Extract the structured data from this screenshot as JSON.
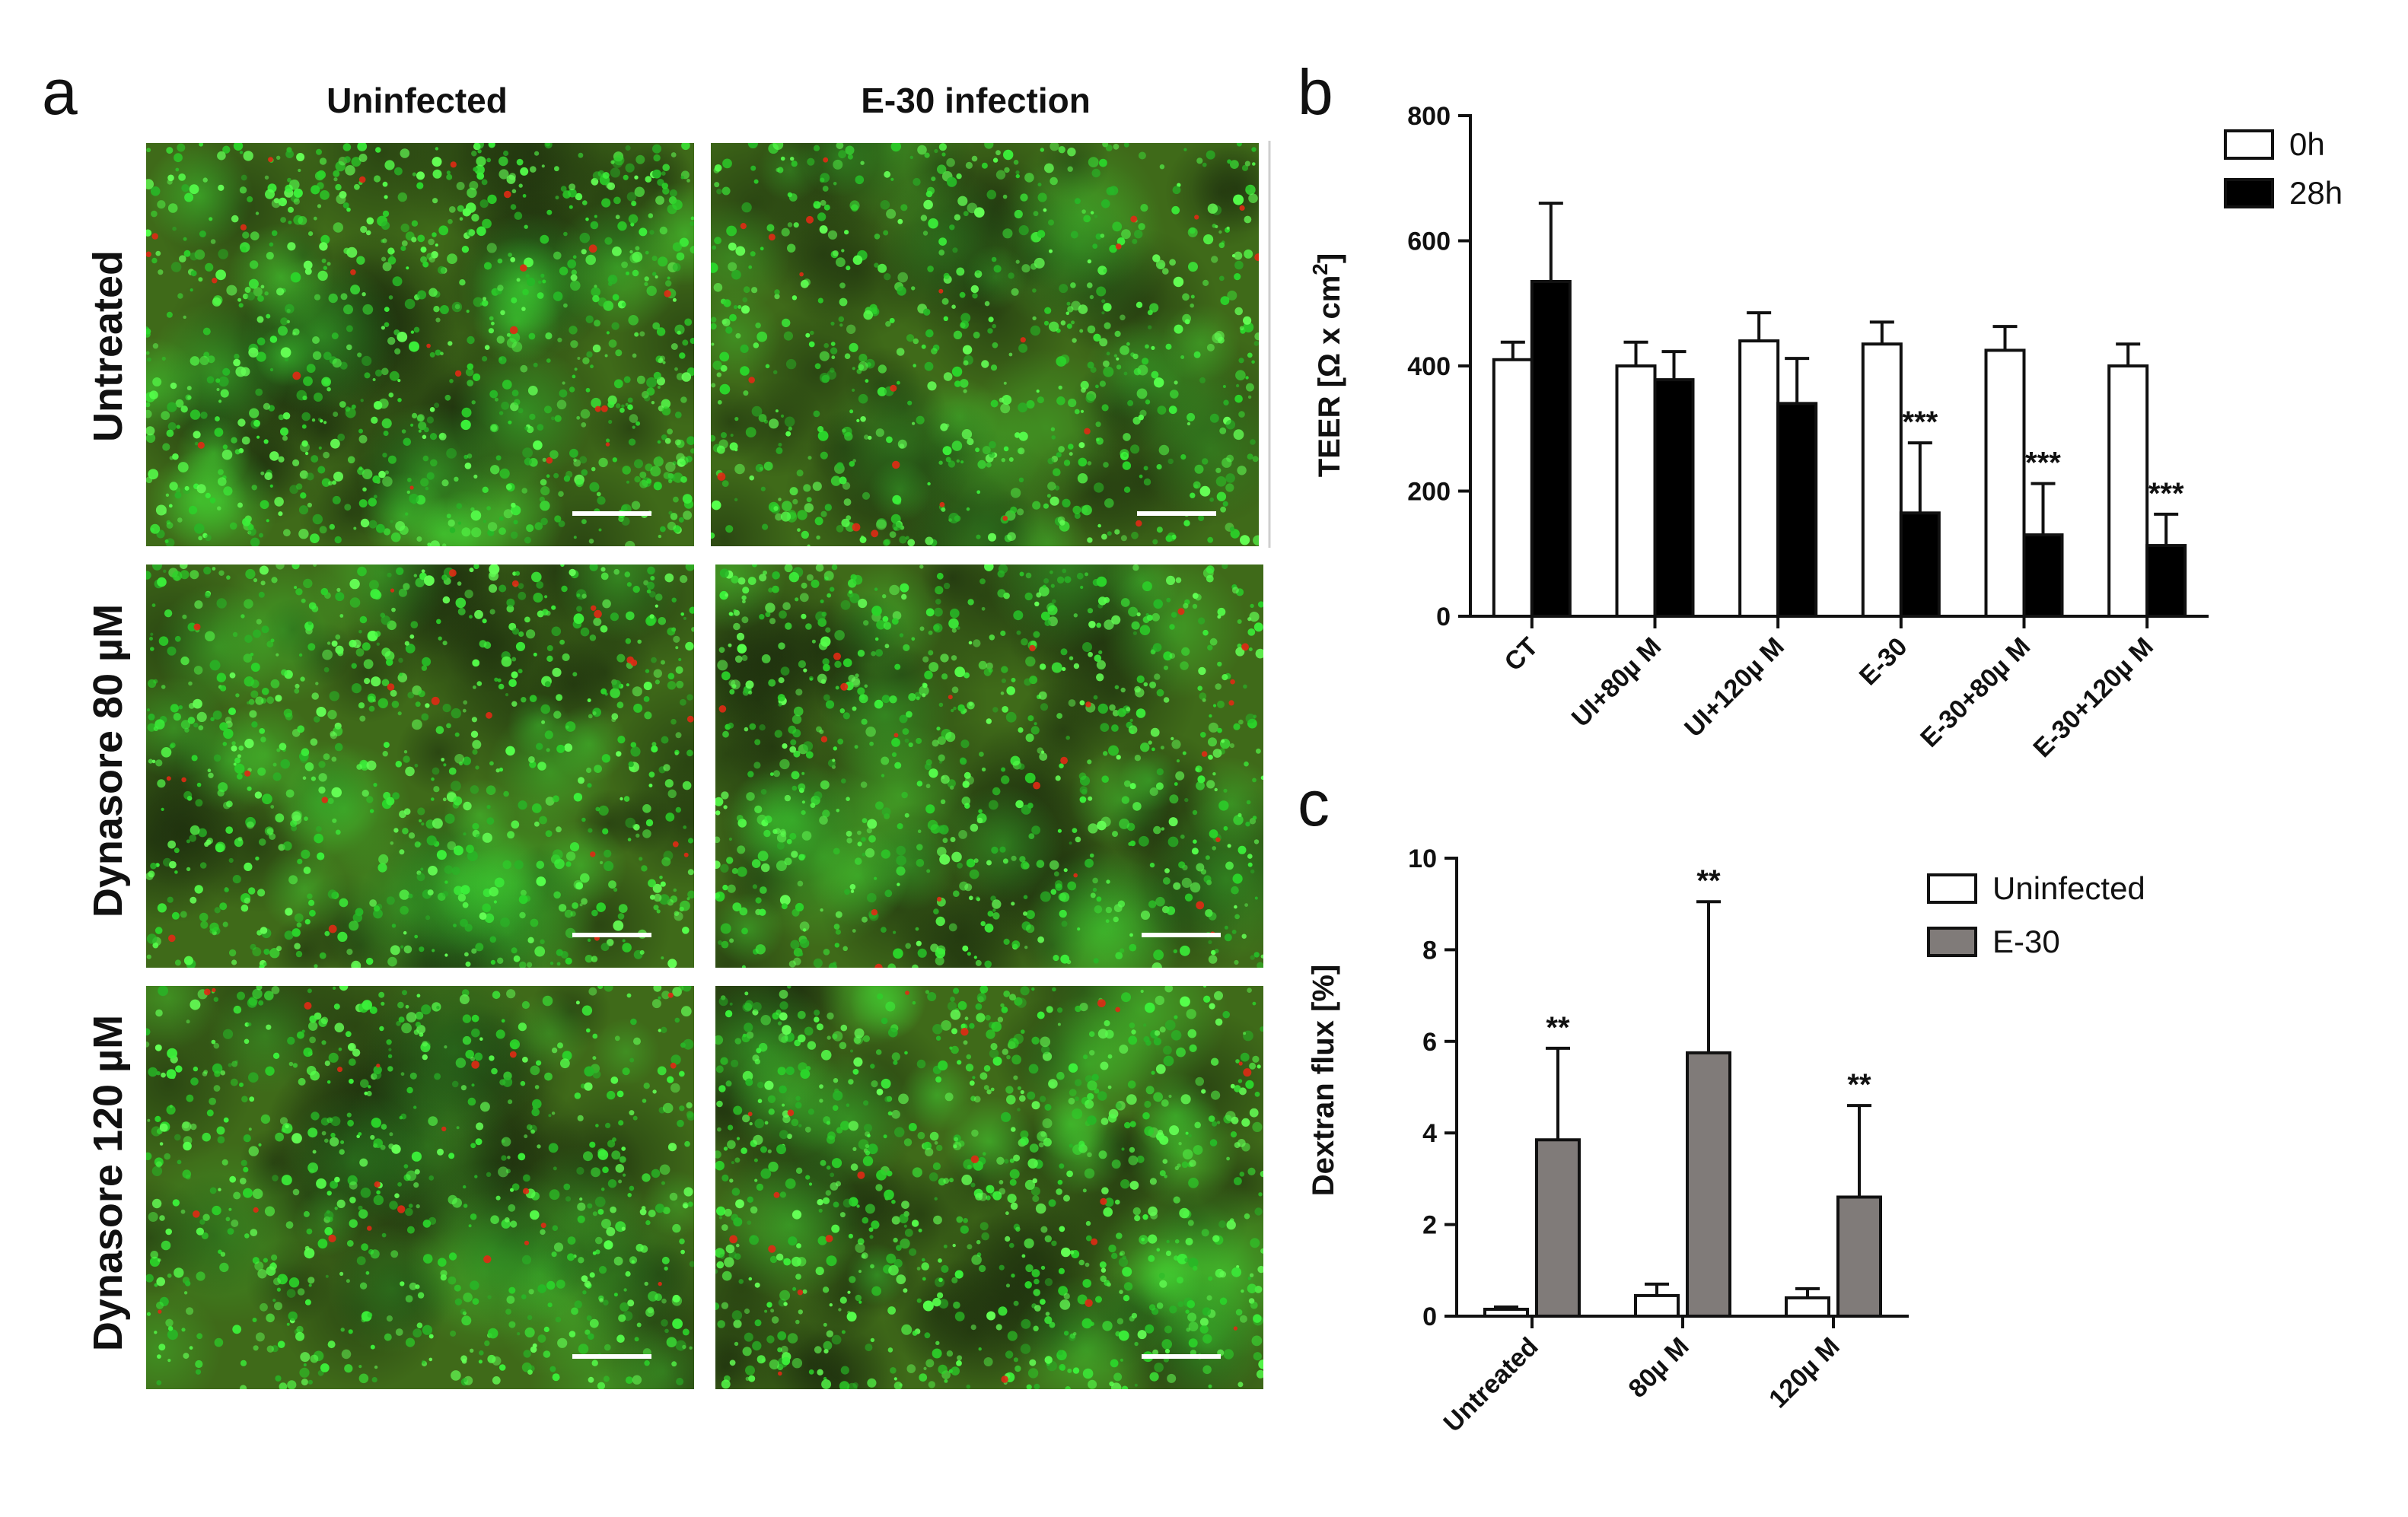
{
  "panel_a": {
    "letter": "a",
    "columns": [
      "Uninfected",
      "E-30 infection"
    ],
    "rows": [
      "Untreated",
      "Dynasore 80 µM",
      "Dynasore 120 µM"
    ]
  },
  "chart_data": [
    {
      "panel": "b",
      "type": "bar",
      "ylabel_main": "TEER [Ω x cm",
      "ylabel_sup": "2",
      "ylabel_end": "]",
      "ylim": [
        0,
        800
      ],
      "yticks": [
        0,
        200,
        400,
        600,
        800
      ],
      "categories": [
        "CT",
        "UI+80µ M",
        "UI+120µ M",
        "E-30",
        "E-30+80µ M",
        "E-30+120µ M"
      ],
      "series": [
        {
          "name": "0h",
          "color": "#ffffff",
          "values": [
            410,
            400,
            440,
            435,
            425,
            400
          ],
          "errors": [
            28,
            38,
            45,
            35,
            38,
            35
          ]
        },
        {
          "name": "28h",
          "color": "#000000",
          "values": [
            535,
            378,
            340,
            165,
            130,
            113
          ],
          "errors": [
            125,
            45,
            72,
            112,
            82,
            50
          ]
        }
      ],
      "annotations": [
        {
          "category": "E-30",
          "series": "28h",
          "text": "***"
        },
        {
          "category": "E-30+80µ M",
          "series": "28h",
          "text": "***"
        },
        {
          "category": "E-30+120µ M",
          "series": "28h",
          "text": "***"
        }
      ],
      "legend_position": "top-right",
      "grid": false
    },
    {
      "panel": "c",
      "type": "bar",
      "ylabel": "Dextran flux [%]",
      "ylim": [
        0,
        10
      ],
      "yticks": [
        0,
        2,
        4,
        6,
        8,
        10
      ],
      "categories": [
        "Untreated",
        "80µ M",
        "120µ M"
      ],
      "series": [
        {
          "name": "Uninfected",
          "color": "#ffffff",
          "values": [
            0.15,
            0.45,
            0.4
          ],
          "errors": [
            0.05,
            0.25,
            0.2
          ]
        },
        {
          "name": "E-30",
          "color": "#807b79",
          "values": [
            3.85,
            5.75,
            2.6
          ],
          "errors": [
            2.0,
            3.3,
            2.0
          ]
        }
      ],
      "annotations": [
        {
          "category": "Untreated",
          "series": "E-30",
          "text": "**"
        },
        {
          "category": "80µ M",
          "series": "E-30",
          "text": "**"
        },
        {
          "category": "120µ M",
          "series": "E-30",
          "text": "**"
        }
      ],
      "legend_position": "top-right",
      "grid": false
    }
  ]
}
